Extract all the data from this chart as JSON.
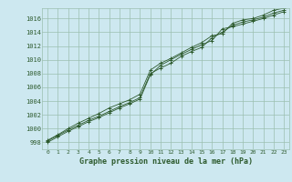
{
  "title": "Graphe pression niveau de la mer (hPa)",
  "background_color": "#cde8f0",
  "plot_bg_color": "#cde8f0",
  "grid_color": "#9bbfb0",
  "line_color": "#2d5a2d",
  "marker": "+",
  "xlim": [
    -0.5,
    23.5
  ],
  "ylim": [
    997.0,
    1017.5
  ],
  "xticks": [
    0,
    1,
    2,
    3,
    4,
    5,
    6,
    7,
    8,
    9,
    10,
    11,
    12,
    13,
    14,
    15,
    16,
    17,
    18,
    19,
    20,
    21,
    22,
    23
  ],
  "yticks": [
    998,
    1000,
    1002,
    1004,
    1006,
    1008,
    1010,
    1012,
    1014,
    1016
  ],
  "series": [
    [
      998.2,
      999.0,
      999.8,
      1000.5,
      1001.2,
      1001.8,
      1002.5,
      1003.2,
      1003.8,
      1004.5,
      1008.0,
      1008.8,
      1009.5,
      1010.5,
      1011.2,
      1011.8,
      1013.2,
      1014.0,
      1015.0,
      1015.5,
      1015.8,
      1016.2,
      1016.8,
      1017.2
    ],
    [
      998.0,
      998.8,
      999.6,
      1000.3,
      1001.0,
      1001.6,
      1002.3,
      1003.0,
      1003.6,
      1004.3,
      1007.8,
      1009.2,
      1010.0,
      1010.8,
      1011.5,
      1012.2,
      1012.8,
      1014.5,
      1014.8,
      1015.2,
      1015.6,
      1016.0,
      1016.5,
      1017.0
    ],
    [
      998.3,
      999.1,
      1000.0,
      1000.8,
      1001.5,
      1002.2,
      1003.0,
      1003.6,
      1004.2,
      1005.0,
      1008.5,
      1009.5,
      1010.2,
      1011.0,
      1011.8,
      1012.5,
      1013.5,
      1013.8,
      1015.3,
      1015.8,
      1016.0,
      1016.5,
      1017.2,
      1017.5
    ]
  ]
}
